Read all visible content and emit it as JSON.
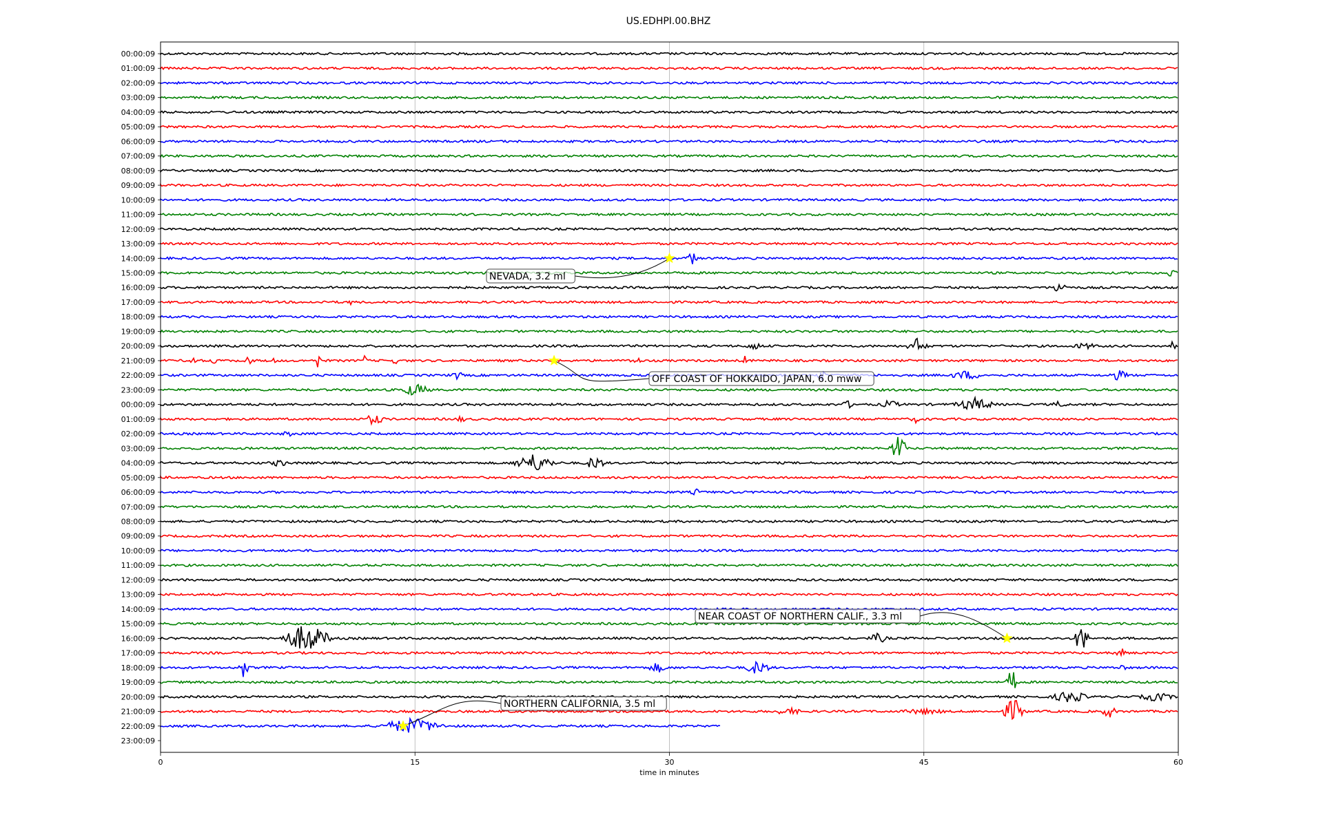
{
  "chart_data": {
    "type": "line",
    "title": "US.EDHPI.00.BHZ",
    "xlabel": "time in minutes",
    "ylabel": "",
    "xlim": [
      0,
      60
    ],
    "x_ticks": [
      "0",
      "15",
      "30",
      "45",
      "60"
    ],
    "x_tick_values": [
      0,
      15,
      30,
      45,
      60
    ],
    "grid": "vertical",
    "colors": [
      "#000000",
      "#ff0000",
      "#0000ff",
      "#008000"
    ],
    "star_color": "#ffff00",
    "rows": [
      "00:00:09",
      "01:00:09",
      "02:00:09",
      "03:00:09",
      "04:00:09",
      "05:00:09",
      "06:00:09",
      "07:00:09",
      "08:00:09",
      "09:00:09",
      "10:00:09",
      "11:00:09",
      "12:00:09",
      "13:00:09",
      "14:00:09",
      "15:00:09",
      "16:00:09",
      "17:00:09",
      "18:00:09",
      "19:00:09",
      "20:00:09",
      "21:00:09",
      "22:00:09",
      "23:00:09",
      "00:00:09",
      "01:00:09",
      "02:00:09",
      "03:00:09",
      "04:00:09",
      "05:00:09",
      "06:00:09",
      "07:00:09",
      "08:00:09",
      "09:00:09",
      "10:00:09",
      "11:00:09",
      "12:00:09",
      "13:00:09",
      "14:00:09",
      "15:00:09",
      "16:00:09",
      "17:00:09",
      "18:00:09",
      "19:00:09",
      "20:00:09",
      "21:00:09",
      "22:00:09",
      "23:00:09"
    ],
    "trace_end_minutes": 33,
    "events": [
      {
        "label": "NEVADA, 3.2 ml",
        "row": 14,
        "minute": 30.0
      },
      {
        "label": "OFF COAST OF HOKKAIDO, JAPAN, 6.0 mww",
        "row": 21,
        "minute": 23.2
      },
      {
        "label": "NEAR COAST OF NORTHERN CALIF., 3.3 ml",
        "row": 40,
        "minute": 49.9
      },
      {
        "label": "NORTHERN CALIFORNIA, 3.5 ml",
        "row": 46,
        "minute": 14.3
      }
    ],
    "spikes": [
      {
        "row": 14,
        "minute": 31.3,
        "amp": 10,
        "width": 0.5
      },
      {
        "row": 15,
        "minute": 59.7,
        "amp": 8,
        "width": 0.6
      },
      {
        "row": 16,
        "minute": 53.0,
        "amp": 12,
        "width": 0.5
      },
      {
        "row": 17,
        "minute": 9.7,
        "amp": 5,
        "width": 0.2
      },
      {
        "row": 17,
        "minute": 11.2,
        "amp": 5,
        "width": 0.2
      },
      {
        "row": 20,
        "minute": 35.0,
        "amp": 6,
        "width": 0.8
      },
      {
        "row": 20,
        "minute": 44.6,
        "amp": 12,
        "width": 0.8
      },
      {
        "row": 20,
        "minute": 54.5,
        "amp": 5,
        "width": 1.2
      },
      {
        "row": 20,
        "minute": 59.7,
        "amp": 9,
        "width": 0.2
      },
      {
        "row": 21,
        "minute": 1.9,
        "amp": 14,
        "width": 0.2
      },
      {
        "row": 21,
        "minute": 3.1,
        "amp": 12,
        "width": 0.2
      },
      {
        "row": 21,
        "minute": 5.2,
        "amp": 15,
        "width": 0.2
      },
      {
        "row": 21,
        "minute": 6.6,
        "amp": 10,
        "width": 0.2
      },
      {
        "row": 21,
        "minute": 9.3,
        "amp": 14,
        "width": 0.2
      },
      {
        "row": 21,
        "minute": 12.0,
        "amp": 10,
        "width": 0.2
      },
      {
        "row": 21,
        "minute": 13.8,
        "amp": 8,
        "width": 0.2
      },
      {
        "row": 21,
        "minute": 28.0,
        "amp": 6,
        "width": 0.6
      },
      {
        "row": 21,
        "minute": 34.5,
        "amp": 10,
        "width": 0.2
      },
      {
        "row": 22,
        "minute": 17.5,
        "amp": 8,
        "width": 0.4
      },
      {
        "row": 22,
        "minute": 39.0,
        "amp": 8,
        "width": 0.5
      },
      {
        "row": 22,
        "minute": 47.5,
        "amp": 7,
        "width": 1.5
      },
      {
        "row": 22,
        "minute": 56.5,
        "amp": 8,
        "width": 0.8
      },
      {
        "row": 23,
        "minute": 15.0,
        "amp": 10,
        "width": 1.2
      },
      {
        "row": 24,
        "minute": 40.5,
        "amp": 6,
        "width": 0.6
      },
      {
        "row": 24,
        "minute": 43.0,
        "amp": 7,
        "width": 0.8
      },
      {
        "row": 24,
        "minute": 48.0,
        "amp": 10,
        "width": 1.6
      },
      {
        "row": 24,
        "minute": 53.0,
        "amp": 6,
        "width": 0.6
      },
      {
        "row": 25,
        "minute": 12.6,
        "amp": 9,
        "width": 0.8
      },
      {
        "row": 25,
        "minute": 17.7,
        "amp": 5,
        "width": 0.5
      },
      {
        "row": 25,
        "minute": 44.5,
        "amp": 6,
        "width": 0.4
      },
      {
        "row": 26,
        "minute": 7.5,
        "amp": 5,
        "width": 0.5
      },
      {
        "row": 27,
        "minute": 43.5,
        "amp": 22,
        "width": 0.6
      },
      {
        "row": 28,
        "minute": 7.0,
        "amp": 6,
        "width": 0.8
      },
      {
        "row": 28,
        "minute": 22.0,
        "amp": 14,
        "width": 1.6
      },
      {
        "row": 28,
        "minute": 25.6,
        "amp": 11,
        "width": 0.8
      },
      {
        "row": 30,
        "minute": 31.6,
        "amp": 5,
        "width": 0.6
      },
      {
        "row": 40,
        "minute": 8.6,
        "amp": 22,
        "width": 1.8
      },
      {
        "row": 40,
        "minute": 42.3,
        "amp": 8,
        "width": 0.8
      },
      {
        "row": 40,
        "minute": 54.3,
        "amp": 24,
        "width": 0.5
      },
      {
        "row": 41,
        "minute": 56.6,
        "amp": 8,
        "width": 0.5
      },
      {
        "row": 42,
        "minute": 4.9,
        "amp": 16,
        "width": 0.4
      },
      {
        "row": 42,
        "minute": 29.3,
        "amp": 8,
        "width": 0.8
      },
      {
        "row": 42,
        "minute": 35.2,
        "amp": 11,
        "width": 1.0
      },
      {
        "row": 42,
        "minute": 56.7,
        "amp": 5,
        "width": 0.4
      },
      {
        "row": 43,
        "minute": 50.2,
        "amp": 22,
        "width": 0.4
      },
      {
        "row": 44,
        "minute": 53.6,
        "amp": 10,
        "width": 1.4
      },
      {
        "row": 44,
        "minute": 58.7,
        "amp": 7,
        "width": 1.4
      },
      {
        "row": 45,
        "minute": 37.0,
        "amp": 6,
        "width": 1.2
      },
      {
        "row": 45,
        "minute": 45.0,
        "amp": 5,
        "width": 2.0
      },
      {
        "row": 45,
        "minute": 50.3,
        "amp": 20,
        "width": 0.8
      },
      {
        "row": 45,
        "minute": 55.9,
        "amp": 10,
        "width": 0.6
      },
      {
        "row": 46,
        "minute": 14.8,
        "amp": 12,
        "width": 2.5
      }
    ]
  }
}
